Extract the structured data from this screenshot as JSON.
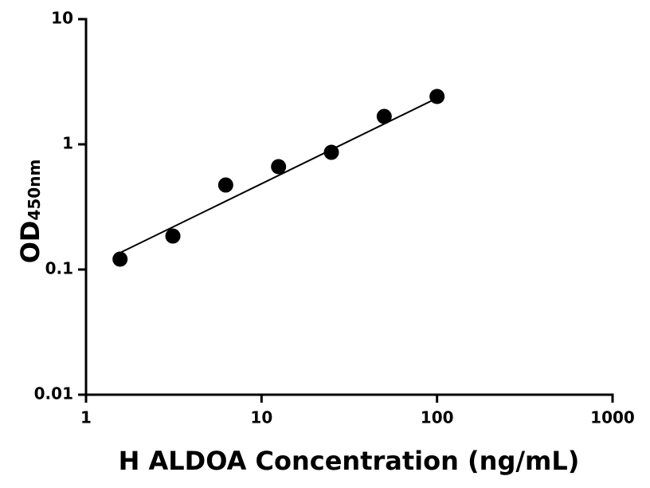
{
  "chart_data": {
    "type": "scatter",
    "xlabel": "H ALDOA Concentration (ng/mL)",
    "ylabel": "OD",
    "ylabel_sub": "450nm",
    "xscale": "log",
    "yscale": "log",
    "xlim": [
      1,
      1000
    ],
    "ylim": [
      0.01,
      10
    ],
    "xticks": [
      1,
      10,
      100,
      1000
    ],
    "yticks": [
      0.01,
      0.1,
      1,
      10
    ],
    "grid": false,
    "series": [
      {
        "color": "#000000",
        "x": [
          1.5625,
          3.125,
          6.25,
          12.5,
          25,
          50,
          100
        ],
        "values": [
          0.121,
          0.185,
          0.473,
          0.663,
          0.863,
          1.67,
          2.41
        ]
      }
    ],
    "fit": {
      "color": "#000000",
      "x": [
        1.5625,
        100
      ],
      "values": [
        0.136,
        2.34
      ]
    }
  }
}
